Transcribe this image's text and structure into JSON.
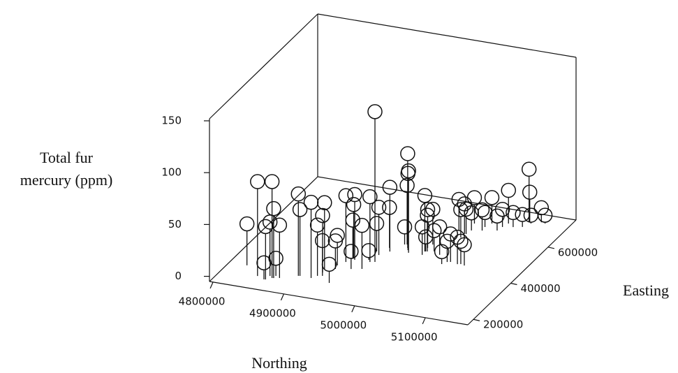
{
  "chart_data": {
    "type": "scatter3d",
    "xlabel": "Northing",
    "ylabel": "Easting",
    "zlabel": [
      "Total fur",
      "mercury (ppm)"
    ],
    "xlim": [
      4795000,
      5160000
    ],
    "ylim": [
      170000,
      750000
    ],
    "zlim": [
      -5,
      152
    ],
    "xticks": [
      4800000,
      4900000,
      5000000,
      5100000
    ],
    "yticks": [
      200000,
      400000,
      600000
    ],
    "zticks": [
      0,
      50,
      100,
      150
    ],
    "color": "#111111",
    "x": [
      4820000,
      4846000,
      4866000,
      4858000,
      4868000,
      4868000,
      4861000,
      4875000,
      4860000,
      4895000,
      4897000,
      4913000,
      4918000,
      4920000,
      4924000,
      4918000,
      4941000,
      4929000,
      4931000,
      4935000,
      4943000,
      4940000,
      4939000,
      4950000,
      4963000,
      4960000,
      4964000,
      4959000,
      4970000,
      4975000,
      4970000,
      4984000,
      4992000,
      4995000,
      4999000,
      4987000,
      5017000,
      5016000,
      5020000,
      5018000,
      5018000,
      5018000,
      5028000,
      5039000,
      5053000,
      5057000,
      5061000,
      5072000,
      5076000,
      5082000,
      5032000,
      5043000,
      5043000,
      5045000,
      5042000,
      5047000,
      5060000,
      5059000,
      5063000,
      5078000,
      5080000,
      5083000,
      5093000,
      5104000,
      5106000,
      5107000,
      5110000,
      5121000,
      5127000,
      4966000
    ],
    "y": [
      276000,
      234000,
      236000,
      223000,
      249000,
      237000,
      244000,
      242000,
      224000,
      267000,
      268000,
      267000,
      282000,
      302000,
      286000,
      320000,
      258000,
      347000,
      329000,
      370000,
      387000,
      393000,
      392000,
      341000,
      350000,
      398000,
      389000,
      444000,
      393000,
      454000,
      471000,
      499000,
      485000,
      475000,
      463000,
      501000,
      482000,
      501000,
      484000,
      464000,
      483000,
      521000,
      490000,
      478000,
      436000,
      450000,
      453000,
      448000,
      451000,
      447000,
      608000,
      576000,
      596000,
      597000,
      653000,
      618000,
      626000,
      645000,
      667000,
      638000,
      659000,
      680000,
      667000,
      675000,
      703000,
      703000,
      698000,
      712000,
      709000,
      429000
    ],
    "z": [
      35,
      86,
      88,
      11,
      12,
      62,
      47,
      46,
      46,
      74,
      59,
      68,
      44,
      50,
      29,
      59,
      13,
      24,
      22,
      59,
      58,
      47,
      32,
      12,
      37,
      4,
      58,
      22,
      140,
      57,
      34,
      12,
      86,
      69,
      74,
      52,
      49,
      32,
      30,
      22,
      9,
      29,
      15,
      22,
      7,
      15,
      22,
      21,
      17,
      15,
      25,
      22,
      24,
      19,
      20,
      12,
      15,
      9,
      20,
      9,
      12,
      27,
      9,
      7,
      46,
      24,
      3,
      9,
      3,
      41
    ]
  }
}
